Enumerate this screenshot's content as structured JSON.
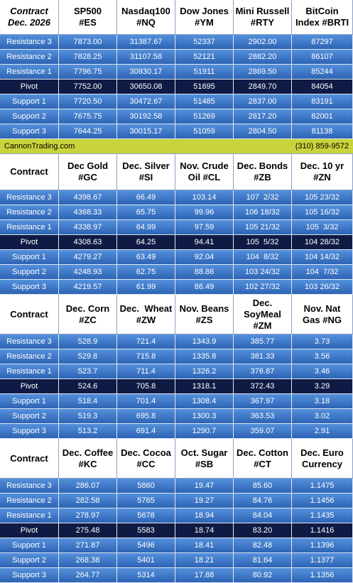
{
  "sections": [
    {
      "headers": [
        "Contract\nDec. 2026",
        "SP500\n#ES",
        "Nasdaq100\n#NQ",
        "Dow Jones\n#YM",
        "Mini Russell\n#RTY",
        "BitCoin\nIndex #BRTI"
      ],
      "rows": [
        [
          "Resistance 3",
          "7873.00",
          "31387.67",
          "52337",
          "2902.00",
          "87297"
        ],
        [
          "Resistance 2",
          "7828.25",
          "31107.58",
          "52121",
          "2882.20",
          "86107"
        ],
        [
          "Resistance 1",
          "7796.75",
          "30930.17",
          "51911",
          "2869.50",
          "85244"
        ],
        [
          "Pivot",
          "7752.00",
          "30650.08",
          "51695",
          "2849.70",
          "84054"
        ],
        [
          "Support 1",
          "7720.50",
          "30472.67",
          "51485",
          "2837.00",
          "83191"
        ],
        [
          "Support 2",
          "7675.75",
          "30192.58",
          "51269",
          "2817.20",
          "82001"
        ],
        [
          "Support 3",
          "7644.25",
          "30015.17",
          "51059",
          "2804.50",
          "81138"
        ]
      ]
    },
    {
      "headers": [
        "Contract",
        "Dec Gold\n#GC",
        "Dec. Silver\n#SI",
        "Nov. Crude\nOil #CL",
        "Dec. Bonds\n#ZB",
        "Dec. 10 yr\n#ZN"
      ],
      "rows": [
        [
          "Resistance 3",
          "4398.67",
          "66.49",
          "103.14",
          "107  2/32",
          "105 23/32"
        ],
        [
          "Resistance 2",
          "4368.33",
          "65.75",
          "99.96",
          "106 18/32",
          "105 16/32"
        ],
        [
          "Resistance 1",
          "4338.97",
          "64.99",
          "97.59",
          "105 21/32",
          "105  3/32"
        ],
        [
          "Pivot",
          "4308.63",
          "64.25",
          "94.41",
          "105  5/32",
          "104 28/32"
        ],
        [
          "Support 1",
          "4279.27",
          "63.49",
          "92.04",
          "104  8/32",
          "104 14/32"
        ],
        [
          "Support 2",
          "4248.93",
          "62.75",
          "88.86",
          "103 24/32",
          "104  7/32"
        ],
        [
          "Support 3",
          "4219.57",
          "61.99",
          "86.49",
          "102 27/32",
          "103 26/32"
        ]
      ]
    },
    {
      "headers": [
        "Contract",
        "Dec. Corn\n#ZC",
        "Dec.  Wheat\n#ZW",
        "Nov. Beans\n#ZS",
        "Dec.\nSoyMeal\n#ZM",
        "Nov. Nat\nGas #NG"
      ],
      "rows": [
        [
          "Resistance 3",
          "528.9",
          "721.4",
          "1343.9",
          "385.77",
          "3.73"
        ],
        [
          "Resistance 2",
          "529.8",
          "715.8",
          "1335.8",
          "381.33",
          "3.56"
        ],
        [
          "Resistance 1",
          "523.7",
          "711.4",
          "1326.2",
          "376.87",
          "3.46"
        ],
        [
          "Pivot",
          "524.6",
          "705.8",
          "1318.1",
          "372.43",
          "3.29"
        ],
        [
          "Support 1",
          "518.4",
          "701.4",
          "1308.4",
          "367.97",
          "3.18"
        ],
        [
          "Support 2",
          "519.3",
          "695.8",
          "1300.3",
          "363.53",
          "3.02"
        ],
        [
          "Support 3",
          "513.2",
          "691.4",
          "1290.7",
          "359.07",
          "2.91"
        ]
      ]
    },
    {
      "headers": [
        "Contract",
        "Dec. Coffee\n#KC",
        "Dec. Cocoa\n#CC",
        "Oct. Sugar\n#SB",
        "Dec. Cotton\n#CT",
        "Dec. Euro\nCurrency"
      ],
      "rows": [
        [
          "Resistance 3",
          "286.07",
          "5860",
          "19.47",
          "85.60",
          "1.1475"
        ],
        [
          "Resistance 2",
          "282.58",
          "5765",
          "19.27",
          "84.76",
          "1.1456"
        ],
        [
          "Resistance 1",
          "278.97",
          "5678",
          "18.94",
          "84.04",
          "1.1435"
        ],
        [
          "Pivot",
          "275.48",
          "5583",
          "18.74",
          "83.20",
          "1.1416"
        ],
        [
          "Support 1",
          "271.87",
          "5496",
          "18.41",
          "82.48",
          "1.1396"
        ],
        [
          "Support 2",
          "268.38",
          "5401",
          "18.21",
          "81.64",
          "1.1377"
        ],
        [
          "Support 3",
          "264.77",
          "5314",
          "17.88",
          "80.92",
          "1.1356"
        ]
      ]
    }
  ],
  "banner": {
    "site": "CannonTrading.com",
    "phone": "(310) 859-9572"
  }
}
